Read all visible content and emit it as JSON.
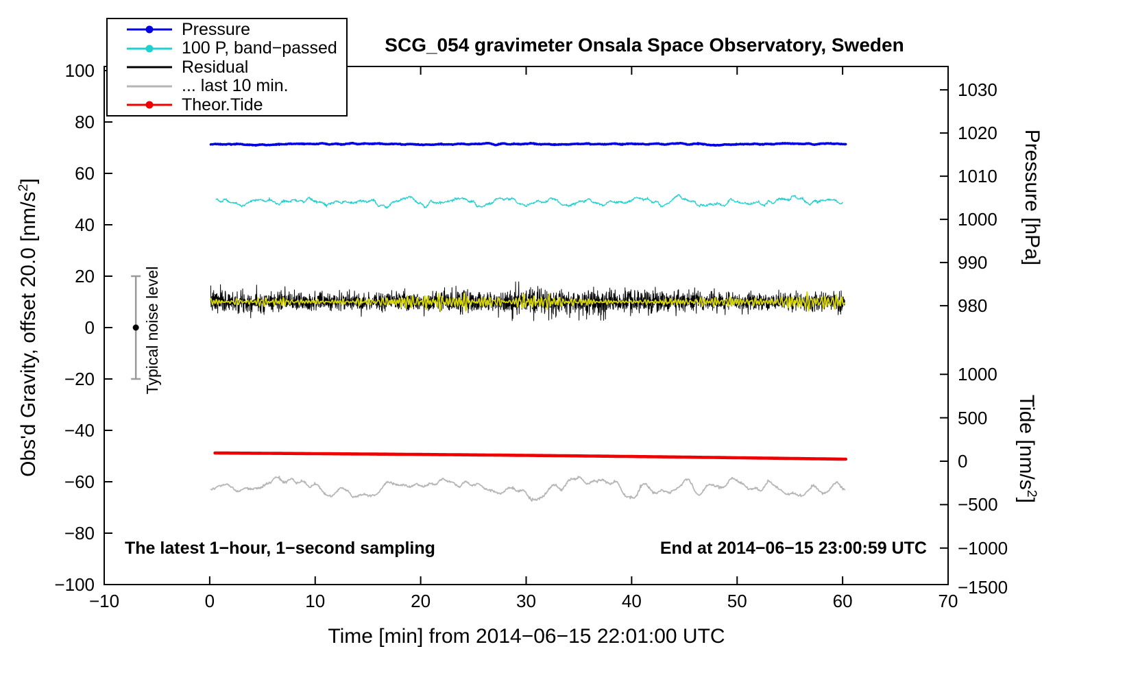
{
  "chart_data": {
    "type": "line",
    "title": "SCG_054 gravimeter Onsala Space Observatory, Sweden",
    "xlabel": "Time [min] from 2014−06−15 22:01:00 UTC",
    "ylabel_left": {
      "pre": "Obs'd Gravity, offset 20.0 [nm/s",
      "sup": "2",
      "post": "]"
    },
    "ylabel_right_top": {
      "pre": "Pressure [hPa]",
      "sup": "",
      "post": ""
    },
    "ylabel_right_bottom": {
      "pre": "Tide [nm/s",
      "sup": "2",
      "post": "]"
    },
    "annotations": {
      "sampling": "The latest 1−hour, 1−second sampling",
      "end_time": "End at 2014−06−15 23:00:59 UTC",
      "noise_label": "Typical noise level",
      "noise_bar": {
        "x": -7,
        "y_low": -20,
        "y_high": 20,
        "dot_y": 0
      }
    },
    "axes": {
      "xlim": [
        -10,
        70
      ],
      "ylim": [
        -100,
        101.6
      ],
      "grid": false,
      "x_ticks": [
        {
          "v": -10,
          "label": "−10"
        },
        {
          "v": 0,
          "label": "0"
        },
        {
          "v": 10,
          "label": "10"
        },
        {
          "v": 20,
          "label": "20"
        },
        {
          "v": 30,
          "label": "30"
        },
        {
          "v": 40,
          "label": "40"
        },
        {
          "v": 50,
          "label": "50"
        },
        {
          "v": 60,
          "label": "60"
        },
        {
          "v": 70,
          "label": "70"
        }
      ],
      "y_ticks": [
        {
          "v": -100,
          "label": "−100"
        },
        {
          "v": -80,
          "label": "−80"
        },
        {
          "v": -60,
          "label": "−60"
        },
        {
          "v": -40,
          "label": "−40"
        },
        {
          "v": -20,
          "label": "−20"
        },
        {
          "v": 0,
          "label": "0"
        },
        {
          "v": 20,
          "label": "20"
        },
        {
          "v": 40,
          "label": "40"
        },
        {
          "v": 60,
          "label": "60"
        },
        {
          "v": 80,
          "label": "80"
        },
        {
          "v": 100,
          "label": "100"
        }
      ],
      "pressure_ticks": [
        {
          "label": "1030",
          "y": 92.5
        },
        {
          "label": "1020",
          "y": 75.7
        },
        {
          "label": "1010",
          "y": 58.9
        },
        {
          "label": "1000",
          "y": 42.1
        },
        {
          "label": "990",
          "y": 25.3
        },
        {
          "label": "980",
          "y": 8.5
        }
      ],
      "tide_ticks": [
        {
          "label": "1000",
          "y": -18.2
        },
        {
          "label": "500",
          "y": -35.1
        },
        {
          "label": "0",
          "y": -52.0
        },
        {
          "label": "−500",
          "y": -68.9
        },
        {
          "label": "−1000",
          "y": -85.8
        },
        {
          "label": "−1500",
          "y": -101.0
        }
      ]
    },
    "legend": [
      {
        "label": "Pressure",
        "color": "#0000e0",
        "marker": true
      },
      {
        "label": "100 P, band−passed",
        "color": "#20d0d0",
        "marker": true
      },
      {
        "label": "Residual",
        "color": "#000000",
        "marker": false
      },
      {
        "label": "... last 10 min.",
        "color": "#b5b5b5",
        "marker": false
      },
      {
        "label": "Theor.Tide",
        "color": "#ee0000",
        "marker": true
      }
    ],
    "series": [
      {
        "key": "last-10-min",
        "color": "#b5b5b5",
        "width": 1.7,
        "x0": 0.1,
        "x1": 60.2,
        "n": 1000,
        "baseline": -62.2,
        "kind": "smooth",
        "amp": 1.9,
        "fmax": 0.9,
        "white": 0.25,
        "seed": 21
      },
      {
        "key": "pressure",
        "color": "#0000e0",
        "width": 3.4,
        "x0": 0.1,
        "x1": 60.3,
        "n": 1400,
        "baseline": 71.4,
        "kind": "smooth",
        "amp": 0.16,
        "fmax": 1.2,
        "white": 0.07,
        "seed": 3
      },
      {
        "key": "pressure-band-passed",
        "color": "#20d0d0",
        "width": 1.2,
        "x0": 0.6,
        "x1": 60.0,
        "n": 1600,
        "baseline": 48.9,
        "kind": "smooth",
        "amp": 0.8,
        "fmax": 1.6,
        "white": 0.22,
        "seed": 5
      },
      {
        "key": "residual",
        "color": "#000000",
        "width": 1,
        "x0": 0.1,
        "x1": 60.2,
        "n": 3000,
        "baseline": 10.1,
        "kind": "white",
        "amp": 2.0,
        "seed": 7
      },
      {
        "key": "residual-band",
        "color": "#d6d600",
        "width": 1.8,
        "x0": 0.1,
        "x1": 60.2,
        "n": 1600,
        "baseline": 10.0,
        "kind": "osc",
        "amp": 0.85,
        "fmin": 2.0,
        "fmax": 5.0,
        "seed": 12
      },
      {
        "key": "theor-tide",
        "color": "#ee0000",
        "width": 4.6,
        "x0": 0.5,
        "x1": 60.3,
        "n": 240,
        "kind": "trend",
        "y0": -48.8,
        "y1": -51.2,
        "bulge": 0.25,
        "seed": 9
      }
    ]
  }
}
